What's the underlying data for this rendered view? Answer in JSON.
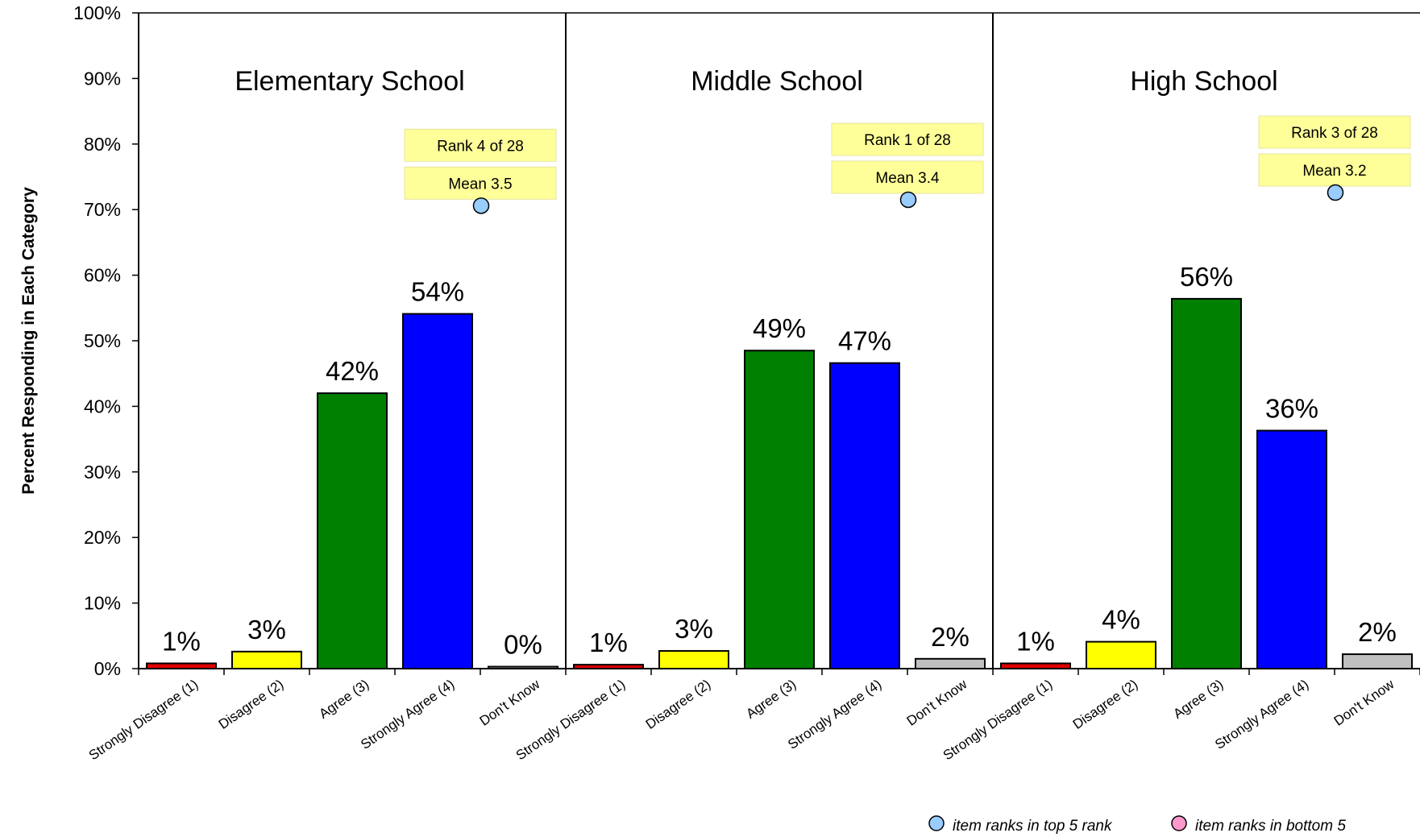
{
  "chart_data": {
    "type": "bar",
    "ylabel": "Percent Responding in Each Category",
    "ylim": [
      0,
      100
    ],
    "y_ticks": [
      "0%",
      "10%",
      "20%",
      "30%",
      "40%",
      "50%",
      "60%",
      "70%",
      "80%",
      "90%",
      "100%"
    ],
    "categories": [
      "Strongly Disagree (1)",
      "Disagree (2)",
      "Agree (3)",
      "Strongly Agree (4)",
      "Don't Know"
    ],
    "category_colors": [
      "#e00000",
      "#ffff00",
      "#008000",
      "#0000ff",
      "#c0c0c0"
    ],
    "panels": [
      {
        "title": "Elementary School",
        "values": [
          1,
          3,
          42,
          54,
          0
        ],
        "value_labels": [
          "1%",
          "3%",
          "42%",
          "54%",
          "0%"
        ],
        "plotted_values": [
          0.8,
          2.6,
          42,
          54.1,
          0.3
        ],
        "rank_label": "Rank 4 of 28",
        "mean_label": "Mean 3.5",
        "marker_value": 70.6
      },
      {
        "title": "Middle School",
        "values": [
          1,
          3,
          49,
          47,
          2
        ],
        "value_labels": [
          "1%",
          "3%",
          "49%",
          "47%",
          "2%"
        ],
        "plotted_values": [
          0.6,
          2.7,
          48.5,
          46.6,
          1.5
        ],
        "rank_label": "Rank 1 of 28",
        "mean_label": "Mean 3.4",
        "marker_value": 71.5
      },
      {
        "title": "High School",
        "values": [
          1,
          4,
          56,
          36,
          2
        ],
        "value_labels": [
          "1%",
          "4%",
          "56%",
          "36%",
          "2%"
        ],
        "plotted_values": [
          0.8,
          4.1,
          56.4,
          36.3,
          2.2
        ],
        "rank_label": "Rank 3 of 28",
        "mean_label": "Mean 3.2",
        "marker_value": 72.6
      }
    ],
    "legend": [
      {
        "label": "item ranks in top 5 rank",
        "color": "#99ccff"
      },
      {
        "label": "item ranks in bottom 5",
        "color": "#ff99cc"
      }
    ],
    "grid": false
  }
}
